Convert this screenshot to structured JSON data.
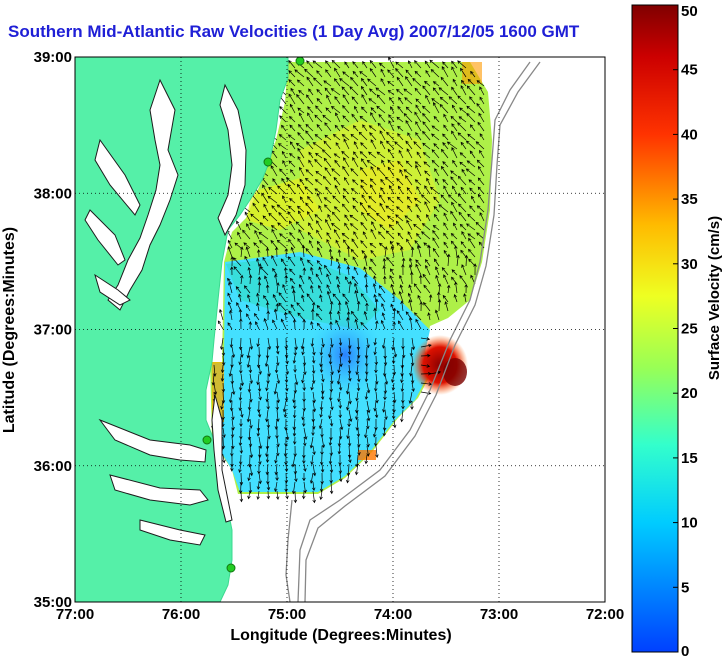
{
  "chart_data": {
    "type": "heatmap",
    "title": "Southern Mid-Atlantic Raw Velocities (1 Day Avg) 2007/12/05 1600 GMT",
    "xlabel": "Longitude (Degrees:Minutes)",
    "ylabel": "Latitude (Degrees:Minutes)",
    "xlim": [
      -77,
      -72
    ],
    "ylim": [
      35,
      39
    ],
    "x_ticks": [
      "77:00",
      "76:00",
      "75:00",
      "74:00",
      "73:00",
      "72:00"
    ],
    "y_ticks": [
      "35:00",
      "36:00",
      "37:00",
      "38:00",
      "39:00"
    ],
    "grid": true,
    "colorbar": {
      "label": "Surface Velocity (cm/s)",
      "min": 0,
      "max": 50,
      "ticks": [
        "0",
        "5",
        "10",
        "15",
        "20",
        "25",
        "30",
        "35",
        "40",
        "45",
        "50"
      ]
    },
    "colors": {
      "land": "#55f0a8",
      "water": "#ffffff",
      "title": "#1f1fd6",
      "gridline": "#000000",
      "coast_stations": "#22cc22",
      "bathymetry": "#888888"
    },
    "field_samples": [
      {
        "lon": -74.2,
        "lat": 38.5,
        "speed": 21
      },
      {
        "lon": -73.9,
        "lat": 38.0,
        "speed": 24
      },
      {
        "lon": -74.6,
        "lat": 37.6,
        "speed": 17
      },
      {
        "lon": -74.5,
        "lat": 36.9,
        "speed": 6
      },
      {
        "lon": -74.0,
        "lat": 36.5,
        "speed": 11
      },
      {
        "lon": -73.8,
        "lat": 36.8,
        "speed": 46
      },
      {
        "lon": -74.8,
        "lat": 36.2,
        "speed": 15
      },
      {
        "lon": -75.2,
        "lat": 37.0,
        "speed": 12
      },
      {
        "lon": -73.3,
        "lat": 38.6,
        "speed": 19
      }
    ]
  }
}
